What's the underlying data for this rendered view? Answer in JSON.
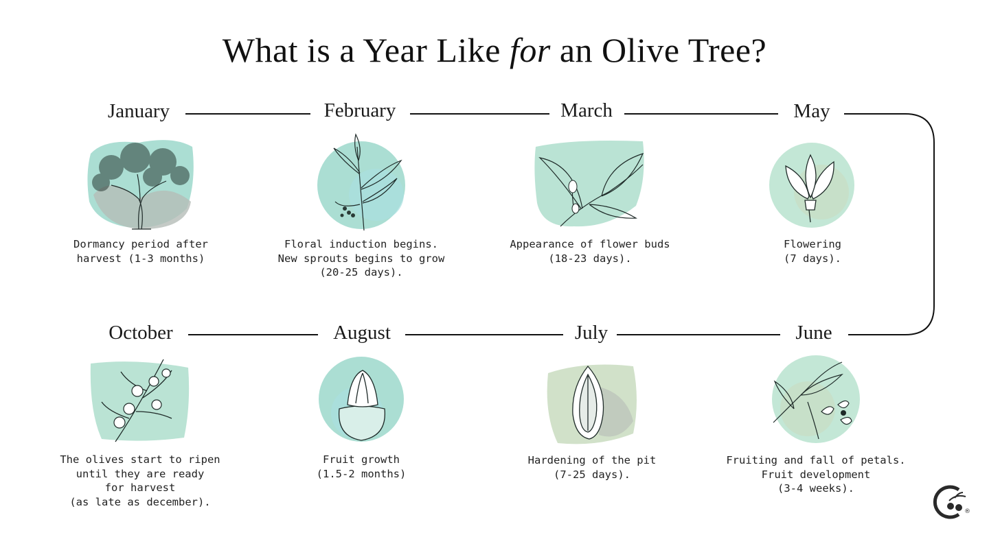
{
  "title": {
    "part1": "What is a Year Like ",
    "italic": "for",
    "part2": " an Olive Tree?"
  },
  "months": [
    {
      "name": "January",
      "desc": "Dormancy period after\nharvest (1-3 months)",
      "icon": "olive-tree-icon"
    },
    {
      "name": "February",
      "desc": "Floral induction begins.\nNew sprouts begins to grow\n(20-25 days).",
      "icon": "sprout-branch-icon"
    },
    {
      "name": "March",
      "desc": "Appearance of flower buds\n(18-23 days).",
      "icon": "flower-bud-icon"
    },
    {
      "name": "May",
      "desc": "Flowering\n(7 days).",
      "icon": "flower-icon"
    },
    {
      "name": "October",
      "desc": "The olives start to ripen\nuntil they are ready\nfor harvest\n(as late as december).",
      "icon": "olive-branch-icon"
    },
    {
      "name": "August",
      "desc": "Fruit growth\n(1.5-2 months)",
      "icon": "fruit-section-icon"
    },
    {
      "name": "July",
      "desc": "Hardening of the pit\n(7-25 days).",
      "icon": "olive-pit-icon"
    },
    {
      "name": "June",
      "desc": "Fruiting and fall of petals.\nFruit development\n(3-4 weeks).",
      "icon": "petals-fall-icon"
    }
  ],
  "colors": {
    "teal": "#8fd3c4",
    "mint": "#b9e3cf",
    "sage": "#c9dcc0",
    "grey": "#b5bdb8",
    "line": "#111111"
  },
  "logo": {
    "icon": "olive-logo-icon",
    "mark": "®"
  }
}
